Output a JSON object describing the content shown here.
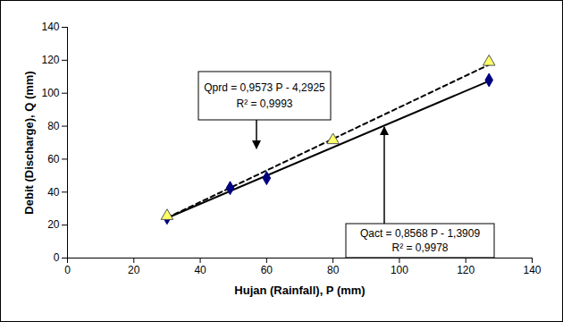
{
  "chart_data": {
    "type": "scatter",
    "xlabel": "Hujan (Rainfall), P (mm)",
    "ylabel": "Debit (Discharge), Q (mm)",
    "xlim": [
      0,
      140
    ],
    "ylim": [
      0,
      140
    ],
    "xticks": [
      0,
      20,
      40,
      60,
      80,
      100,
      120,
      140
    ],
    "yticks": [
      0,
      20,
      40,
      60,
      80,
      100,
      120,
      140
    ],
    "grid": false,
    "series": [
      {
        "type": "line",
        "line_style": "dashed",
        "color": "#000000",
        "x": [
          30,
          127
        ],
        "values": [
          24.4,
          117.3
        ]
      },
      {
        "type": "line",
        "line_style": "solid",
        "color": "#000000",
        "x": [
          30,
          127
        ],
        "values": [
          24.3,
          107.4
        ]
      },
      {
        "type": "scatter",
        "marker": "diamond",
        "color": "#000080",
        "x": [
          30,
          49,
          60,
          127
        ],
        "values": [
          24.5,
          42.5,
          48.5,
          108
        ]
      },
      {
        "type": "scatter",
        "marker": "triangle",
        "color": "#ffff66",
        "x": [
          30,
          80,
          127
        ],
        "values": [
          25.5,
          71.5,
          119
        ]
      }
    ],
    "annotations": [
      {
        "lines": [
          "Qprd = 0,9573 P - 4,2925",
          "R² = 0,9993"
        ]
      },
      {
        "lines": [
          "Qact = 0,8568 P - 1,3909",
          "R² = 0,9978"
        ]
      }
    ]
  }
}
